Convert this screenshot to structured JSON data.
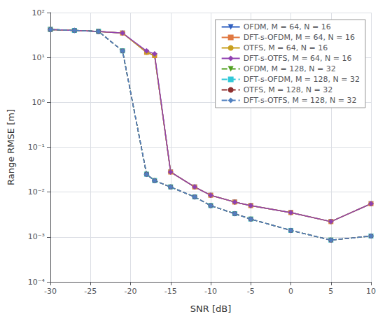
{
  "chart_data": {
    "type": "line",
    "log": "y",
    "grid": true,
    "legend": "upper right",
    "xlabel": "SNR [dB]",
    "ylabel": "Range RMSE [m]",
    "xlim": [
      -30,
      10
    ],
    "xticks": [
      -30,
      -25,
      -20,
      -15,
      -10,
      -5,
      0,
      5,
      10
    ],
    "ylim": [
      0.0001,
      100
    ],
    "yticks": [
      {
        "value": 0.0001,
        "label": "10⁻⁴"
      },
      {
        "value": 0.001,
        "label": "10⁻³"
      },
      {
        "value": 0.01,
        "label": "10⁻²"
      },
      {
        "value": 0.1,
        "label": "10⁻¹"
      },
      {
        "value": 1,
        "label": "10⁰"
      },
      {
        "value": 10,
        "label": "10¹"
      },
      {
        "value": 100,
        "label": "10²"
      }
    ],
    "x": [
      -30,
      -27,
      -24,
      -21,
      -18,
      -17,
      -15,
      -12,
      -10,
      -7,
      -5,
      0,
      5,
      10
    ],
    "series": [
      {
        "name": "OFDM, M = 64, N = 16",
        "color": "#3060c0",
        "line_style": "solid",
        "marker": "triangle_down",
        "values": [
          42,
          40,
          38,
          35,
          13,
          11,
          0.028,
          0.013,
          0.0085,
          0.006,
          0.005,
          0.0035,
          0.0022,
          0.0055
        ]
      },
      {
        "name": "DFT-s-OFDM, M = 64, N = 16",
        "color": "#e07840",
        "line_style": "solid",
        "marker": "square",
        "values": [
          42,
          40,
          38,
          35,
          13,
          11,
          0.028,
          0.013,
          0.0085,
          0.006,
          0.005,
          0.0035,
          0.0022,
          0.0055
        ]
      },
      {
        "name": "OTFS, M = 64, N = 16",
        "color": "#c8a020",
        "line_style": "solid",
        "marker": "circle",
        "values": [
          42,
          40,
          38,
          35,
          13,
          11,
          0.028,
          0.013,
          0.0085,
          0.006,
          0.005,
          0.0035,
          0.0022,
          0.0055
        ]
      },
      {
        "name": "DFT-s-OTFS, M = 64, N = 16",
        "color": "#9040b0",
        "line_style": "solid",
        "marker": "diamond",
        "values": [
          42,
          40,
          38,
          35,
          14,
          12,
          0.028,
          0.013,
          0.0085,
          0.006,
          0.005,
          0.0035,
          0.0022,
          0.0055
        ]
      },
      {
        "name": "OFDM, M = 128, N = 32",
        "color": "#50a020",
        "line_style": "dashed",
        "marker": "triangle_down",
        "values": [
          42,
          40,
          38,
          14,
          0.025,
          0.018,
          0.013,
          0.0078,
          0.005,
          0.0033,
          0.0025,
          0.0014,
          0.00085,
          0.00105
        ]
      },
      {
        "name": "DFT-s-OFDM, M = 128, N = 32",
        "color": "#30c8d8",
        "line_style": "dashed",
        "marker": "square",
        "values": [
          42,
          40,
          38,
          14,
          0.025,
          0.018,
          0.013,
          0.0078,
          0.005,
          0.0033,
          0.0025,
          0.0014,
          0.00085,
          0.00105
        ]
      },
      {
        "name": "OTFS, M = 128, N = 32",
        "color": "#903030",
        "line_style": "dashed",
        "marker": "circle",
        "values": [
          42,
          40,
          38,
          14,
          0.025,
          0.018,
          0.013,
          0.0078,
          0.005,
          0.0033,
          0.0025,
          0.0014,
          0.00085,
          0.00105
        ]
      },
      {
        "name": "DFT-s-OTFS, M = 128, N = 32",
        "color": "#5080c0",
        "line_style": "dashed",
        "marker": "diamond",
        "values": [
          42,
          40,
          38,
          14,
          0.025,
          0.018,
          0.013,
          0.0078,
          0.005,
          0.0033,
          0.0025,
          0.0014,
          0.00085,
          0.00105
        ]
      }
    ]
  }
}
